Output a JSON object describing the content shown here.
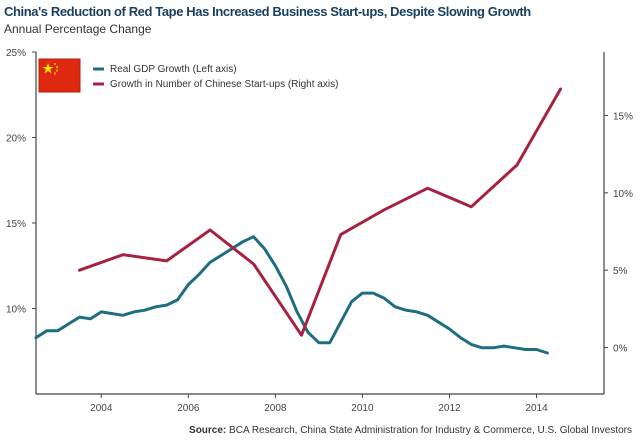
{
  "chart_data": {
    "type": "line",
    "title": "China's Reduction of Red Tape Has Increased Business Start-ups, Despite Slowing Growth",
    "subtitle": "Annual Percentage Change",
    "source_label": "Source:",
    "source_text": "BCA Research, China State Administration for Industry & Commerce, U.S. Global Investors",
    "x_range": [
      2002.5,
      2015.55
    ],
    "x_ticks": [
      2004,
      2006,
      2008,
      2010,
      2012,
      2014
    ],
    "x_tick_labels": [
      "2004",
      "2006",
      "2008",
      "2010",
      "2012",
      "2014"
    ],
    "left_axis": {
      "range": [
        5,
        25
      ],
      "ticks": [
        10,
        15,
        20,
        25
      ],
      "tick_labels": [
        "10%",
        "15%",
        "20%",
        "25%"
      ]
    },
    "right_axis": {
      "range": [
        -3,
        19.1
      ],
      "ticks": [
        0,
        5,
        10,
        15
      ],
      "tick_labels": [
        "0%",
        "5%",
        "10%",
        "15%"
      ]
    },
    "grid": false,
    "legend_position": "top-left",
    "series": [
      {
        "name": "Real GDP Growth (Left axis)",
        "axis": "left",
        "color": "#1d6e80",
        "x": [
          2002.5,
          2002.75,
          2003,
          2003.25,
          2003.5,
          2003.75,
          2004,
          2004.25,
          2004.5,
          2004.75,
          2005,
          2005.25,
          2005.5,
          2005.75,
          2006,
          2006.25,
          2006.5,
          2006.75,
          2007,
          2007.25,
          2007.5,
          2007.75,
          2008,
          2008.25,
          2008.5,
          2008.75,
          2009,
          2009.25,
          2009.5,
          2009.75,
          2010,
          2010.25,
          2010.5,
          2010.75,
          2011,
          2011.25,
          2011.5,
          2011.75,
          2012,
          2012.25,
          2012.5,
          2012.75,
          2013,
          2013.25,
          2013.5,
          2013.75,
          2014,
          2014.25
        ],
        "y": [
          8.3,
          8.7,
          8.7,
          9.1,
          9.5,
          9.4,
          9.8,
          9.7,
          9.6,
          9.8,
          9.9,
          10.1,
          10.2,
          10.5,
          11.4,
          12.0,
          12.7,
          13.1,
          13.5,
          13.9,
          14.2,
          13.5,
          12.5,
          11.3,
          9.8,
          8.6,
          8.0,
          8.0,
          9.2,
          10.4,
          10.9,
          10.9,
          10.6,
          10.1,
          9.9,
          9.8,
          9.6,
          9.2,
          8.8,
          8.3,
          7.9,
          7.7,
          7.7,
          7.8,
          7.7,
          7.6,
          7.6,
          7.4
        ]
      },
      {
        "name": "Growth in Number of Chinese Start-ups (Right axis)",
        "axis": "right",
        "color": "#a52340",
        "x": [
          2003.5,
          2004.5,
          2005.5,
          2006.5,
          2007.5,
          2008.6,
          2009.5,
          2010.5,
          2011.5,
          2012.5,
          2013.55,
          2014.55
        ],
        "y": [
          5.0,
          6.0,
          5.6,
          7.6,
          5.4,
          0.8,
          7.3,
          8.9,
          10.3,
          9.1,
          11.8,
          16.7
        ]
      }
    ]
  }
}
